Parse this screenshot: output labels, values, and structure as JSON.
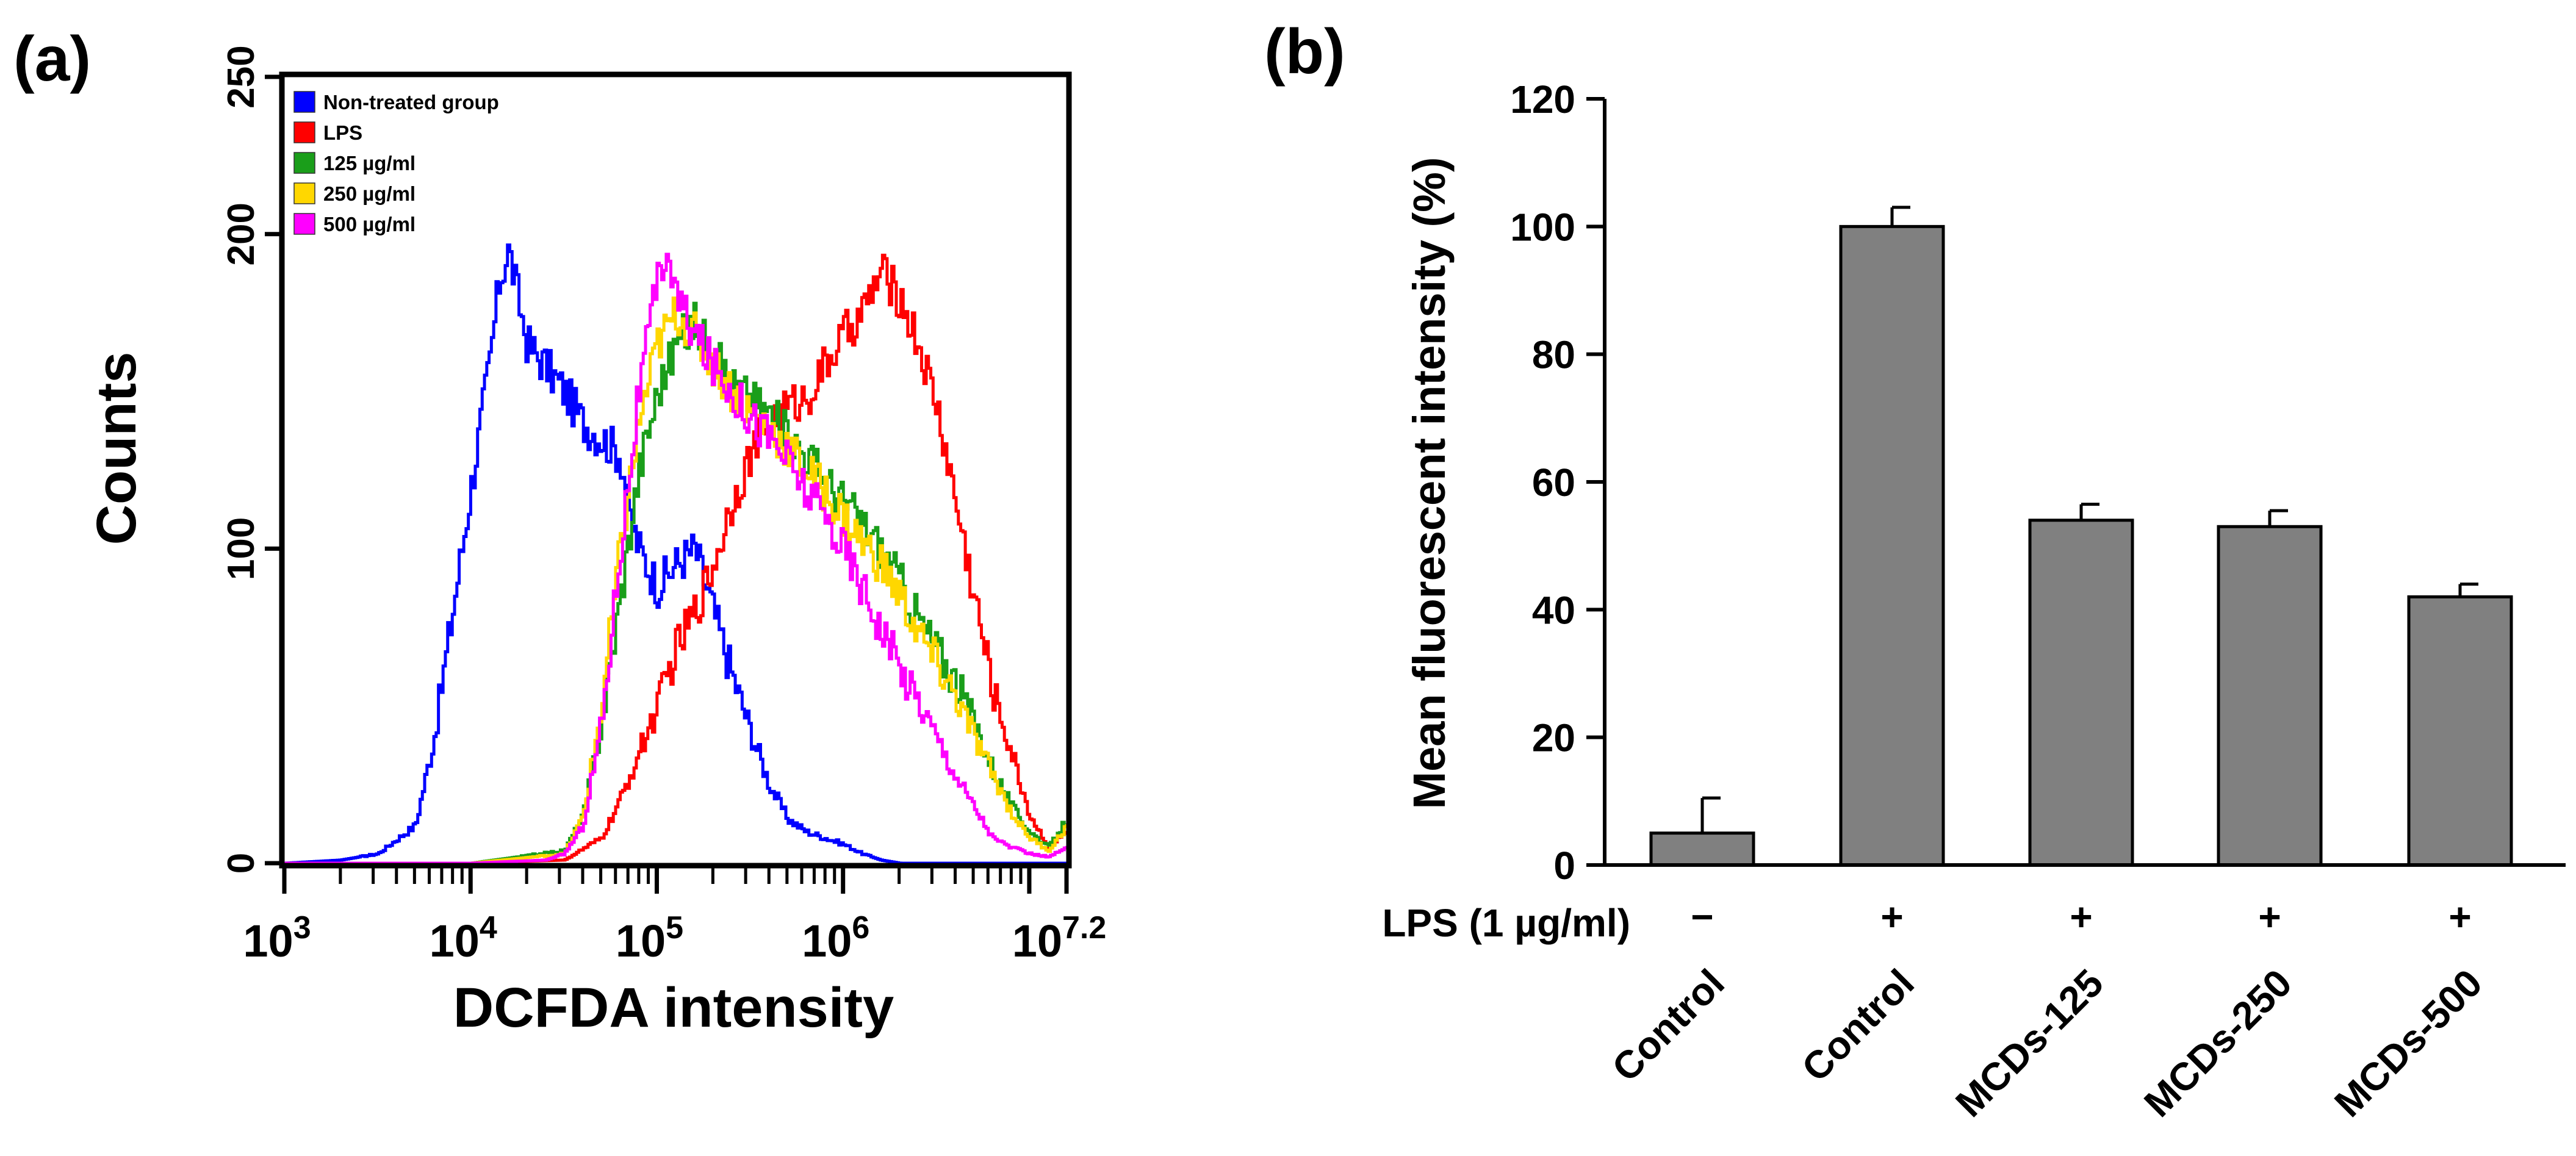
{
  "chart_data": [
    {
      "panel_label": "(a)",
      "type": "line",
      "title": "",
      "xlabel": "DCFDA intensity",
      "ylabel": "Counts",
      "xscale": "log",
      "xlim_log10": [
        3,
        7.2
      ],
      "ylim": [
        0,
        250
      ],
      "y_ticks": [
        "0",
        "100",
        "200",
        "250"
      ],
      "y_tick_values": [
        0,
        100,
        200,
        250
      ],
      "x_tick_labels": [
        {
          "base": "10",
          "exp": "3",
          "log10": 3
        },
        {
          "base": "10",
          "exp": "4",
          "log10": 4
        },
        {
          "base": "10",
          "exp": "5",
          "log10": 5
        },
        {
          "base": "10",
          "exp": "6",
          "log10": 6
        },
        {
          "base": "10",
          "exp": "7.2",
          "log10": 7.2
        }
      ],
      "legend_position": "top-left",
      "series": [
        {
          "name": "Non-treated group",
          "color": "#0000ff",
          "x": [
            3.0,
            3.3,
            3.5,
            3.7,
            3.8,
            3.9,
            4.0,
            4.1,
            4.15,
            4.2,
            4.3,
            4.4,
            4.5,
            4.6,
            4.7,
            4.8,
            4.85,
            4.9,
            5.0,
            5.1,
            5.2,
            5.3,
            5.4,
            5.5,
            5.6,
            5.7,
            5.8,
            6.0,
            6.1,
            6.2,
            6.3,
            6.5,
            7.2
          ],
          "y": [
            0,
            1,
            3,
            12,
            40,
            80,
            120,
            160,
            185,
            195,
            165,
            158,
            150,
            140,
            135,
            130,
            110,
            100,
            88,
            95,
            100,
            80,
            60,
            42,
            25,
            14,
            10,
            6,
            3,
            1,
            0,
            0,
            0
          ]
        },
        {
          "name": "LPS",
          "color": "#ff0000",
          "x": [
            3.0,
            4.0,
            4.5,
            4.7,
            4.8,
            4.9,
            5.0,
            5.1,
            5.2,
            5.3,
            5.4,
            5.5,
            5.6,
            5.7,
            5.8,
            5.9,
            6.0,
            6.1,
            6.2,
            6.3,
            6.4,
            6.5,
            6.6,
            6.7,
            6.8,
            6.9,
            7.0,
            7.1,
            7.2
          ],
          "y": [
            0,
            0,
            1,
            8,
            20,
            35,
            50,
            68,
            80,
            95,
            115,
            130,
            140,
            145,
            148,
            158,
            168,
            175,
            188,
            180,
            165,
            145,
            115,
            85,
            55,
            35,
            15,
            5,
            10
          ]
        },
        {
          "name": "125 µg/ml",
          "color": "#1a9e1a",
          "x": [
            3.0,
            4.0,
            4.5,
            4.6,
            4.7,
            4.8,
            4.9,
            5.0,
            5.1,
            5.2,
            5.3,
            5.4,
            5.5,
            5.6,
            5.7,
            5.8,
            5.9,
            6.0,
            6.1,
            6.2,
            6.3,
            6.4,
            6.5,
            6.6,
            6.7,
            6.8,
            6.9,
            7.0,
            7.1,
            7.2
          ],
          "y": [
            0,
            0,
            4,
            15,
            45,
            85,
            125,
            150,
            165,
            172,
            162,
            152,
            148,
            143,
            136,
            130,
            122,
            115,
            108,
            100,
            90,
            78,
            68,
            58,
            45,
            30,
            18,
            10,
            5,
            14
          ]
        },
        {
          "name": "250 µg/ml",
          "color": "#ffd700",
          "x": [
            3.0,
            4.0,
            4.5,
            4.6,
            4.7,
            4.8,
            4.9,
            5.0,
            5.1,
            5.2,
            5.3,
            5.4,
            5.5,
            5.6,
            5.7,
            5.8,
            5.9,
            6.0,
            6.1,
            6.2,
            6.3,
            6.4,
            6.5,
            6.6,
            6.7,
            6.8,
            6.9,
            7.0,
            7.1,
            7.2
          ],
          "y": [
            0,
            0,
            3,
            15,
            50,
            100,
            140,
            165,
            175,
            168,
            158,
            150,
            143,
            138,
            132,
            125,
            118,
            110,
            102,
            95,
            85,
            73,
            63,
            53,
            40,
            28,
            16,
            8,
            4,
            12
          ]
        },
        {
          "name": "500 µg/ml",
          "color": "#ff00ff",
          "x": [
            3.0,
            4.0,
            4.4,
            4.5,
            4.6,
            4.7,
            4.8,
            4.9,
            5.0,
            5.05,
            5.1,
            5.2,
            5.3,
            5.4,
            5.5,
            5.6,
            5.7,
            5.8,
            5.9,
            6.0,
            6.1,
            6.2,
            6.3,
            6.4,
            6.5,
            6.6,
            6.7,
            6.8,
            6.9,
            7.0,
            7.1,
            7.2
          ],
          "y": [
            0,
            0,
            1,
            3,
            12,
            45,
            100,
            150,
            185,
            195,
            180,
            168,
            158,
            150,
            142,
            136,
            128,
            118,
            110,
            100,
            88,
            75,
            62,
            52,
            40,
            28,
            18,
            8,
            5,
            3,
            2,
            5
          ]
        }
      ]
    },
    {
      "panel_label": "(b)",
      "type": "bar",
      "title": "",
      "xlabel": "",
      "ylabel": "Mean fluorescent intensity (%)",
      "ylim": [
        0,
        120
      ],
      "y_ticks": [
        "0",
        "20",
        "40",
        "60",
        "80",
        "100",
        "120"
      ],
      "y_tick_values": [
        0,
        20,
        40,
        60,
        80,
        100,
        120
      ],
      "bar_color": "#808080",
      "categories": [
        "Control",
        "Control",
        "MCDs-125",
        "MCDs-250",
        "MCDs-500"
      ],
      "values": [
        5,
        100,
        54,
        53,
        42
      ],
      "errors": [
        5.5,
        3,
        2.5,
        2.5,
        2
      ],
      "row_label": "LPS (1 µg/ml)",
      "lps_signs": [
        "−",
        "+",
        "+",
        "+",
        "+"
      ]
    }
  ]
}
